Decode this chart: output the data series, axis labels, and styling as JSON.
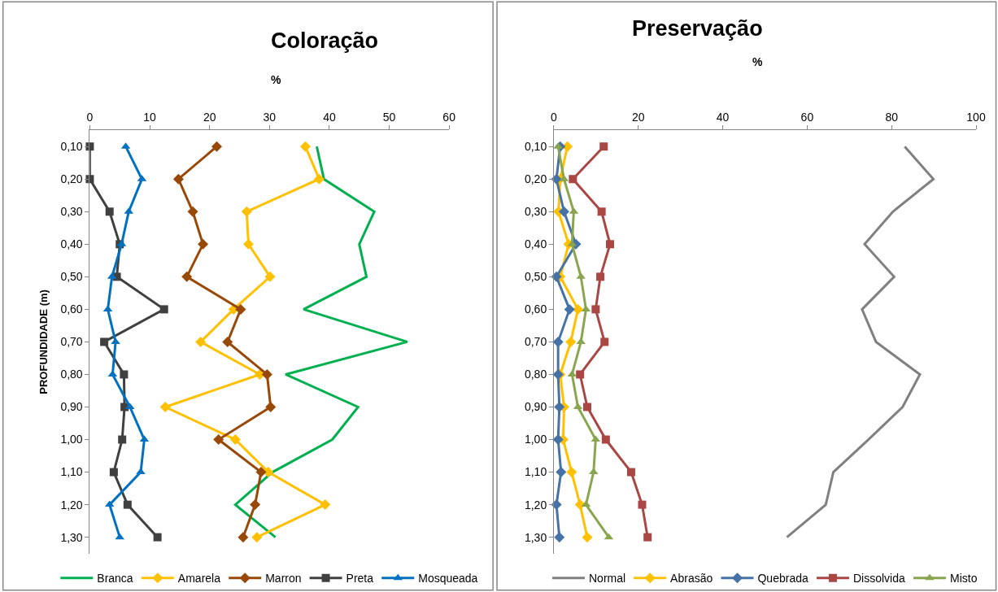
{
  "chart_data": [
    {
      "type": "line",
      "title": "Coloração",
      "xlabel": "%",
      "ylabel": "PROFUNDIDADE (m)",
      "orientation": "horizontal",
      "categories": [
        "0,10",
        "0,20",
        "0,30",
        "0,40",
        "0,50",
        "0,60",
        "0,70",
        "0,80",
        "0,90",
        "1,00",
        "1,10",
        "1,20",
        "1,30"
      ],
      "xlim": [
        0,
        60
      ],
      "xticks": [
        0,
        10,
        20,
        30,
        40,
        50,
        60
      ],
      "legend": "bottom",
      "line_style": "solid",
      "series": [
        {
          "name": "Branca",
          "color": "#00b050",
          "marker": "none",
          "values": [
            37.9,
            39.1,
            47.5,
            45.0,
            46.2,
            35.7,
            53.0,
            32.7,
            44.8,
            40.5,
            30.5,
            24.3,
            31.0
          ]
        },
        {
          "name": "Amarela",
          "color": "#ffc000",
          "marker": "diamond",
          "values": [
            36.0,
            38.3,
            26.2,
            26.5,
            30.1,
            24.0,
            18.5,
            28.4,
            12.6,
            24.3,
            29.8,
            39.3,
            27.9
          ]
        },
        {
          "name": "Marron",
          "color": "#984807",
          "marker": "diamond",
          "values": [
            21.2,
            14.8,
            17.2,
            18.9,
            16.2,
            25.2,
            23.0,
            29.6,
            30.2,
            21.5,
            28.6,
            27.6,
            25.6
          ]
        },
        {
          "name": "Preta",
          "color": "#404040",
          "marker": "square",
          "values": [
            0,
            0,
            3.3,
            5.0,
            4.5,
            12.4,
            2.4,
            5.7,
            5.8,
            5.4,
            4.0,
            6.3,
            11.3
          ]
        },
        {
          "name": "Mosqueada",
          "color": "#0070c0",
          "marker": "triangle",
          "values": [
            6.0,
            8.7,
            6.5,
            5.3,
            3.7,
            3.0,
            4.3,
            3.8,
            6.7,
            9.1,
            8.5,
            3.3,
            5.0
          ]
        }
      ]
    },
    {
      "type": "line",
      "title": "Preservação",
      "xlabel": "%",
      "orientation": "horizontal",
      "categories": [
        "0,10",
        "0,20",
        "0,30",
        "0,40",
        "0,50",
        "0,60",
        "0,70",
        "0,80",
        "0,90",
        "1,00",
        "1,10",
        "1,20",
        "1,30"
      ],
      "xlim": [
        0,
        100
      ],
      "xticks": [
        0,
        20,
        40,
        60,
        80,
        100
      ],
      "legend": "bottom",
      "line_style": "solid",
      "series": [
        {
          "name": "Normal",
          "color": "#808080",
          "marker": "none",
          "values": [
            83.1,
            89.9,
            80.3,
            73.6,
            80.6,
            73.0,
            76.3,
            86.7,
            82.6,
            74.5,
            66.2,
            64.4,
            55.2
          ]
        },
        {
          "name": "Abrasão",
          "color": "#ffc000",
          "marker": "diamond",
          "values": [
            3.2,
            1.5,
            1.1,
            3.5,
            1.5,
            5.7,
            4.0,
            1.5,
            2.4,
            2.2,
            4.2,
            6.2,
            7.9
          ]
        },
        {
          "name": "Quebrada",
          "color": "#4572a7",
          "marker": "diamond",
          "values": [
            1.5,
            0.6,
            2.4,
            5.2,
            0.6,
            3.7,
            1.0,
            1.0,
            1.3,
            1.0,
            1.7,
            0.6,
            1.3
          ]
        },
        {
          "name": "Dissolvida",
          "color": "#aa4643",
          "marker": "square",
          "values": [
            11.8,
            4.5,
            11.3,
            13.3,
            11.0,
            9.9,
            12.0,
            6.2,
            7.9,
            12.3,
            18.3,
            20.9,
            22.2
          ]
        },
        {
          "name": "Misto",
          "color": "#89a54e",
          "marker": "triangle",
          "values": [
            1.0,
            2.4,
            4.7,
            4.3,
            6.4,
            7.6,
            6.4,
            4.3,
            5.7,
            9.9,
            9.4,
            7.6,
            13.0
          ]
        }
      ]
    }
  ]
}
